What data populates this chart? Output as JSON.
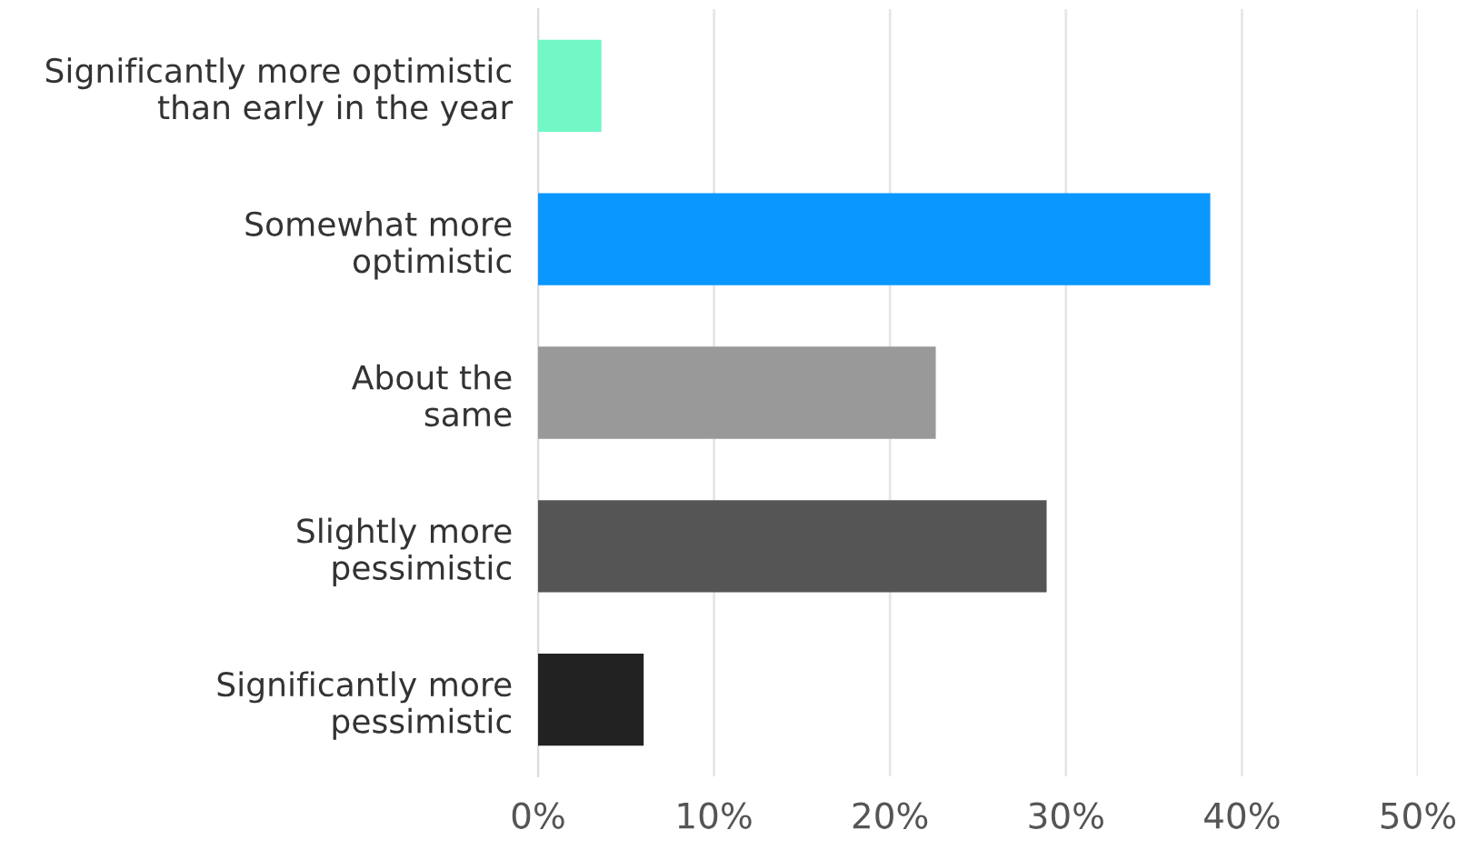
{
  "chart_data": {
    "type": "bar",
    "orientation": "horizontal",
    "categories": [
      "Significantly more optimistic\nthan early in the year",
      "Somewhat more\noptimistic",
      "About the\nsame",
      "Slightly more\npessimistic",
      "Significantly more\npessimistic"
    ],
    "values": [
      3.6,
      38.2,
      22.6,
      28.9,
      6.0
    ],
    "colors": [
      "#72f7c6",
      "#0a97ff",
      "#999999",
      "#555555",
      "#222222"
    ],
    "xlim": [
      0,
      50
    ],
    "xticks": [
      {
        "value": 0,
        "label": "0%"
      },
      {
        "value": 10,
        "label": "10%"
      },
      {
        "value": 20,
        "label": "20%"
      },
      {
        "value": 30,
        "label": "30%"
      },
      {
        "value": 40,
        "label": "40%"
      },
      {
        "value": 50,
        "label": "50%"
      }
    ],
    "grid": "x"
  }
}
